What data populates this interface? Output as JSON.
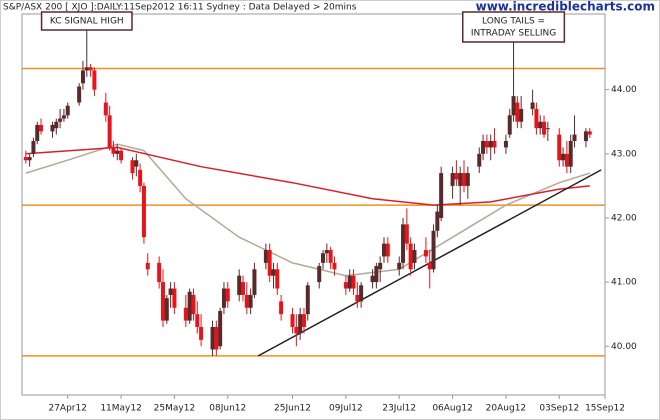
{
  "chart_data": {
    "type": "candlestick",
    "title": "S&P/ASX 200 [ XJO ]:DAILY:11Sep2012 16:11 Sydney : Data Delayed > 20mins",
    "watermark": "www.incrediblecharts.com",
    "up_color": "#5a2a2a",
    "down_color": "#e8141b",
    "x": [
      "2012-04-16",
      "2012-04-17",
      "2012-04-18",
      "2012-04-19",
      "2012-04-20",
      "2012-04-23",
      "2012-04-24",
      "2012-04-25",
      "2012-04-26",
      "2012-04-27",
      "2012-04-30",
      "2012-05-01",
      "2012-05-02",
      "2012-05-03",
      "2012-05-04",
      "2012-05-07",
      "2012-05-08",
      "2012-05-09",
      "2012-05-10",
      "2012-05-11",
      "2012-05-14",
      "2012-05-15",
      "2012-05-16",
      "2012-05-17",
      "2012-05-18",
      "2012-05-21",
      "2012-05-22",
      "2012-05-23",
      "2012-05-24",
      "2012-05-25",
      "2012-05-28",
      "2012-05-29",
      "2012-05-30",
      "2012-05-31",
      "2012-06-01",
      "2012-06-04",
      "2012-06-05",
      "2012-06-06",
      "2012-06-07",
      "2012-06-08",
      "2012-06-11",
      "2012-06-12",
      "2012-06-13",
      "2012-06-14",
      "2012-06-15",
      "2012-06-18",
      "2012-06-19",
      "2012-06-20",
      "2012-06-21",
      "2012-06-22",
      "2012-06-25",
      "2012-06-26",
      "2012-06-27",
      "2012-06-28",
      "2012-06-29",
      "2012-07-02",
      "2012-07-03",
      "2012-07-04",
      "2012-07-05",
      "2012-07-06",
      "2012-07-09",
      "2012-07-10",
      "2012-07-11",
      "2012-07-12",
      "2012-07-13",
      "2012-07-16",
      "2012-07-17",
      "2012-07-18",
      "2012-07-19",
      "2012-07-20",
      "2012-07-23",
      "2012-07-24",
      "2012-07-25",
      "2012-07-26",
      "2012-07-27",
      "2012-07-30",
      "2012-07-31",
      "2012-08-01",
      "2012-08-02",
      "2012-08-03",
      "2012-08-06",
      "2012-08-07",
      "2012-08-08",
      "2012-08-09",
      "2012-08-10",
      "2012-08-13",
      "2012-08-14",
      "2012-08-15",
      "2012-08-16",
      "2012-08-17",
      "2012-08-20",
      "2012-08-21",
      "2012-08-22",
      "2012-08-23",
      "2012-08-24",
      "2012-08-27",
      "2012-08-28",
      "2012-08-29",
      "2012-08-30",
      "2012-08-31",
      "2012-09-03",
      "2012-09-04",
      "2012-09-05",
      "2012-09-06",
      "2012-09-07",
      "2012-09-10",
      "2012-09-11"
    ],
    "ohlc": [
      [
        42.95,
        43.05,
        42.85,
        42.9
      ],
      [
        42.9,
        43.0,
        42.8,
        42.95
      ],
      [
        43.0,
        43.25,
        42.95,
        43.2
      ],
      [
        43.2,
        43.5,
        43.15,
        43.45
      ],
      [
        43.45,
        43.55,
        43.3,
        43.35
      ],
      [
        43.35,
        43.5,
        43.25,
        43.45
      ],
      [
        43.4,
        43.55,
        43.3,
        43.5
      ],
      [
        43.5,
        43.7,
        43.4,
        43.55
      ],
      [
        43.55,
        43.7,
        43.5,
        43.6
      ],
      [
        43.6,
        43.8,
        43.55,
        43.75
      ],
      [
        43.8,
        44.1,
        43.75,
        44.05
      ],
      [
        44.1,
        44.45,
        44.0,
        44.3
      ],
      [
        44.3,
        44.5,
        44.2,
        44.35
      ],
      [
        44.35,
        44.4,
        44.2,
        44.3
      ],
      [
        44.3,
        44.35,
        43.9,
        44.0
      ],
      [
        43.8,
        43.95,
        43.5,
        43.6
      ],
      [
        43.6,
        43.75,
        43.05,
        43.1
      ],
      [
        43.1,
        43.2,
        42.95,
        43.0
      ],
      [
        43.0,
        43.15,
        42.9,
        43.05
      ],
      [
        43.05,
        43.1,
        42.85,
        42.9
      ],
      [
        42.9,
        42.95,
        42.6,
        42.7
      ],
      [
        42.8,
        43.0,
        42.65,
        42.9
      ],
      [
        42.75,
        42.85,
        42.4,
        42.5
      ],
      [
        42.5,
        42.55,
        41.6,
        41.7
      ],
      [
        41.3,
        41.45,
        41.1,
        41.2
      ],
      [
        41.3,
        41.4,
        40.9,
        41.0
      ],
      [
        41.0,
        41.2,
        40.3,
        40.4
      ],
      [
        40.4,
        40.8,
        40.35,
        40.75
      ],
      [
        40.8,
        41.0,
        40.6,
        40.9
      ],
      [
        40.9,
        41.0,
        40.5,
        40.6
      ],
      [
        40.6,
        40.8,
        40.3,
        40.4
      ],
      [
        40.4,
        40.9,
        40.35,
        40.85
      ],
      [
        40.8,
        40.9,
        40.4,
        40.5
      ],
      [
        40.5,
        40.7,
        40.2,
        40.3
      ],
      [
        40.3,
        40.5,
        40.0,
        40.1
      ],
      [
        39.95,
        40.4,
        39.85,
        40.3
      ],
      [
        40.3,
        40.4,
        39.85,
        39.95
      ],
      [
        40.0,
        40.6,
        39.95,
        40.55
      ],
      [
        40.6,
        41.0,
        40.5,
        40.9
      ],
      [
        40.9,
        41.0,
        40.6,
        40.7
      ],
      [
        40.8,
        41.2,
        40.7,
        41.1
      ],
      [
        41.0,
        41.1,
        40.7,
        40.8
      ],
      [
        40.8,
        41.0,
        40.5,
        40.6
      ],
      [
        40.6,
        40.9,
        40.5,
        40.8
      ],
      [
        40.8,
        41.3,
        40.75,
        41.2
      ],
      [
        41.3,
        41.6,
        41.2,
        41.5
      ],
      [
        41.5,
        41.6,
        41.0,
        41.1
      ],
      [
        41.1,
        41.3,
        40.9,
        41.2
      ],
      [
        41.2,
        41.3,
        40.8,
        40.9
      ],
      [
        40.7,
        40.8,
        40.4,
        40.5
      ],
      [
        40.5,
        40.6,
        40.2,
        40.3
      ],
      [
        40.3,
        40.5,
        40.0,
        40.2
      ],
      [
        40.2,
        40.6,
        40.1,
        40.5
      ],
      [
        40.5,
        40.6,
        40.2,
        40.3
      ],
      [
        40.5,
        41.0,
        40.4,
        40.95
      ],
      [
        41.0,
        41.3,
        40.9,
        41.25
      ],
      [
        41.3,
        41.5,
        41.2,
        41.45
      ],
      [
        41.45,
        41.6,
        41.3,
        41.5
      ],
      [
        41.5,
        41.55,
        41.2,
        41.3
      ],
      [
        41.3,
        41.4,
        41.1,
        41.2
      ],
      [
        41.0,
        41.1,
        40.8,
        40.9
      ],
      [
        40.9,
        41.2,
        40.85,
        41.1
      ],
      [
        41.1,
        41.2,
        40.8,
        40.9
      ],
      [
        40.8,
        41.0,
        40.6,
        40.7
      ],
      [
        40.7,
        41.0,
        40.6,
        40.95
      ],
      [
        41.0,
        41.2,
        40.9,
        41.1
      ],
      [
        41.0,
        41.3,
        40.9,
        41.25
      ],
      [
        41.2,
        41.4,
        41.0,
        41.3
      ],
      [
        41.4,
        41.7,
        41.3,
        41.6
      ],
      [
        41.6,
        41.7,
        41.3,
        41.4
      ],
      [
        41.2,
        41.4,
        41.1,
        41.3
      ],
      [
        41.3,
        42.0,
        41.2,
        41.9
      ],
      [
        41.9,
        42.15,
        41.5,
        41.6
      ],
      [
        41.6,
        41.7,
        41.1,
        41.2
      ],
      [
        41.3,
        41.6,
        41.2,
        41.5
      ],
      [
        41.5,
        41.7,
        41.3,
        41.4
      ],
      [
        41.3,
        41.5,
        40.9,
        41.2
      ],
      [
        41.2,
        41.9,
        41.15,
        41.8
      ],
      [
        41.8,
        42.2,
        41.7,
        42.1
      ],
      [
        42.0,
        42.8,
        41.95,
        42.7
      ],
      [
        42.5,
        42.8,
        42.3,
        42.7
      ],
      [
        42.7,
        42.9,
        42.5,
        42.6
      ],
      [
        42.5,
        42.8,
        42.2,
        42.7
      ],
      [
        42.7,
        42.9,
        42.4,
        42.5
      ],
      [
        42.5,
        42.8,
        42.3,
        42.7
      ],
      [
        42.8,
        43.1,
        42.7,
        43.0
      ],
      [
        43.0,
        43.3,
        42.9,
        43.2
      ],
      [
        43.2,
        43.3,
        43.0,
        43.1
      ],
      [
        43.1,
        43.3,
        42.9,
        43.2
      ],
      [
        43.2,
        43.4,
        43.0,
        43.1
      ],
      [
        43.1,
        43.3,
        43.0,
        43.2
      ],
      [
        43.3,
        43.7,
        43.25,
        43.6
      ],
      [
        43.6,
        44.05,
        43.5,
        43.9
      ],
      [
        43.8,
        43.9,
        43.4,
        43.5
      ],
      [
        43.5,
        43.9,
        43.4,
        43.7
      ],
      [
        43.7,
        44.0,
        43.6,
        43.8
      ],
      [
        43.7,
        43.8,
        43.3,
        43.4
      ],
      [
        43.4,
        43.6,
        43.3,
        43.5
      ],
      [
        43.5,
        43.6,
        43.25,
        43.3
      ],
      [
        43.4,
        43.5,
        43.2,
        43.4
      ],
      [
        43.3,
        43.4,
        42.8,
        42.9
      ],
      [
        42.9,
        43.1,
        42.8,
        43.0
      ],
      [
        43.0,
        43.2,
        42.7,
        42.8
      ],
      [
        42.8,
        43.3,
        42.7,
        43.2
      ],
      [
        43.2,
        43.6,
        43.1,
        43.3
      ],
      [
        43.2,
        43.4,
        43.1,
        43.35
      ],
      [
        43.35,
        43.4,
        43.25,
        43.3
      ]
    ],
    "lines": [
      {
        "color": "#b3a995",
        "x": [
          "2012-04-16",
          "2012-04-27",
          "2012-05-10",
          "2012-05-17",
          "2012-05-28",
          "2012-06-11",
          "2012-06-25",
          "2012-07-09",
          "2012-07-23",
          "2012-08-06",
          "2012-08-20",
          "2012-09-03",
          "2012-09-11"
        ],
        "values": [
          42.7,
          42.9,
          43.15,
          43.05,
          42.3,
          41.7,
          41.3,
          41.1,
          41.2,
          41.7,
          42.2,
          42.55,
          42.7
        ]
      },
      {
        "color": "#d9202a",
        "x": [
          "2012-04-16",
          "2012-05-10",
          "2012-06-01",
          "2012-06-25",
          "2012-07-16",
          "2012-08-01",
          "2012-08-16",
          "2012-09-03",
          "2012-09-11"
        ],
        "values": [
          43.0,
          43.1,
          42.8,
          42.55,
          42.3,
          42.2,
          42.25,
          42.45,
          42.5
        ]
      }
    ],
    "hlines": [
      {
        "value": 44.33,
        "color": "#f0901e"
      },
      {
        "value": 42.2,
        "color": "#f0901e"
      },
      {
        "value": 39.85,
        "color": "#f0901e"
      }
    ],
    "trendline": {
      "color": "#222222",
      "x": [
        "2012-06-16",
        "2012-09-14"
      ],
      "values": [
        39.85,
        42.75
      ]
    },
    "annotations": [
      {
        "text": [
          "KC SIGNAL HIGH"
        ],
        "x": "2012-05-02",
        "value": 44.5
      },
      {
        "text": [
          "LONG TAILS =",
          "INTRADAY SELLING"
        ],
        "x": "2012-08-22",
        "value": 44.05
      }
    ],
    "xlim": [
      "2012-04-15",
      "2012-09-15"
    ],
    "ylim": [
      39.24,
      45.18
    ],
    "xticks": [
      {
        "value": "2012-04-27",
        "label": "27Apr12"
      },
      {
        "value": "2012-05-11",
        "label": "11May12"
      },
      {
        "value": "2012-05-25",
        "label": "25May12"
      },
      {
        "value": "2012-06-08",
        "label": "08Jun12"
      },
      {
        "value": "2012-06-25",
        "label": "25Jun12"
      },
      {
        "value": "2012-07-09",
        "label": "09Jul12"
      },
      {
        "value": "2012-07-23",
        "label": "23Jul12"
      },
      {
        "value": "2012-08-06",
        "label": "06Aug12"
      },
      {
        "value": "2012-08-20",
        "label": "20Aug12"
      },
      {
        "value": "2012-09-03",
        "label": "03Sep12"
      },
      {
        "value": "2012-09-15",
        "label": "15Sep12"
      }
    ],
    "yticks": [
      {
        "value": 40,
        "label": "40.00"
      },
      {
        "value": 41,
        "label": "41.00"
      },
      {
        "value": 42,
        "label": "42.00"
      },
      {
        "value": 43,
        "label": "43.00"
      },
      {
        "value": 44,
        "label": "44.00"
      }
    ]
  }
}
